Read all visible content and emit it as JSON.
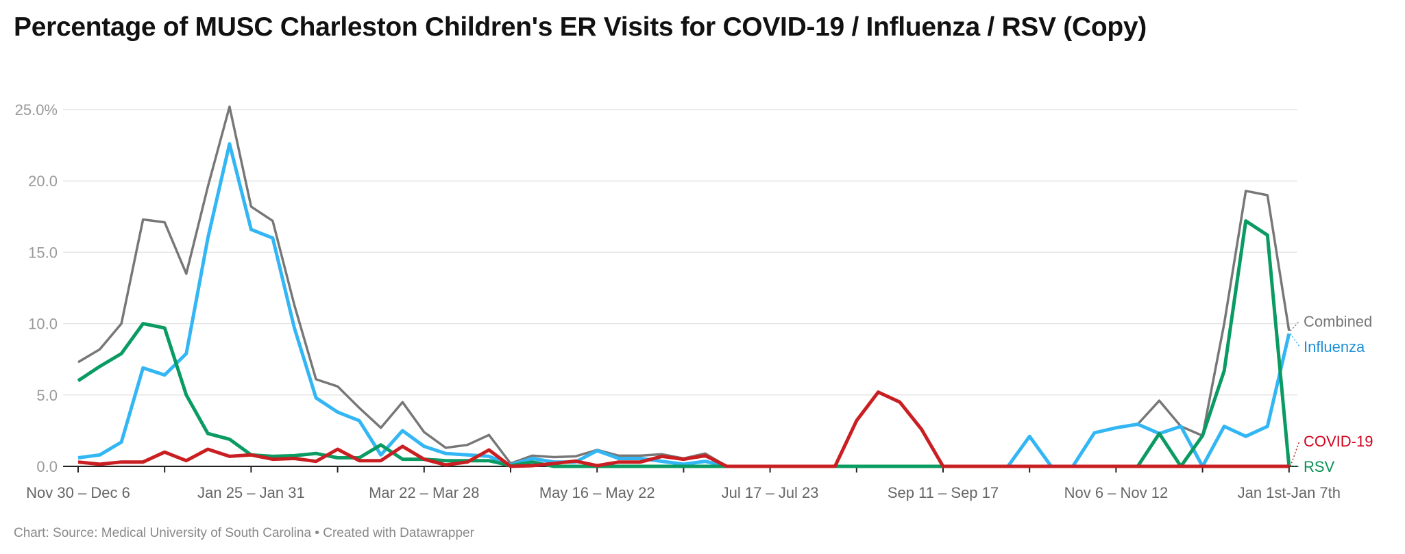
{
  "title": "Percentage of MUSC Charleston Children's ER Visits for COVID-19 / Influenza / RSV (Copy)",
  "footer": "Chart: Source: Medical University of South Carolina • Created with Datawrapper",
  "chart_data": {
    "type": "line",
    "title": "Percentage of MUSC Charleston Children's ER Visits for COVID-19 / Influenza / RSV (Copy)",
    "xlabel": "",
    "ylabel": "",
    "ylim": [
      0,
      25
    ],
    "y_ticks": [
      "0.0",
      "5.0",
      "10.0",
      "15.0",
      "20.0",
      "25.0%"
    ],
    "x_tick_labels": [
      "Nov 30 – Dec 6",
      "Jan 25 – Jan 31",
      "Mar 22 – Mar 28",
      "May 16 – May 22",
      "Jul 17 – Jul 23",
      "Sep 11 – Sep 17",
      "Nov 6 – Nov 12",
      "Jan 1st-Jan 7th"
    ],
    "x_interval": "weekly",
    "grid": true,
    "legend": "direct labels at right end",
    "series": [
      {
        "name": "Combined",
        "color": "#777777",
        "label_color": "#777777",
        "values": [
          7.3,
          8.2,
          10.0,
          17.3,
          17.1,
          13.5,
          19.6,
          25.2,
          18.2,
          17.2,
          11.3,
          6.1,
          5.6,
          4.1,
          2.7,
          4.5,
          2.4,
          1.3,
          1.5,
          2.2,
          0.2,
          0.75,
          0.65,
          0.7,
          1.15,
          0.75,
          0.75,
          0.85,
          0.55,
          0.9,
          0,
          0,
          0,
          0,
          0,
          0,
          0,
          0,
          0,
          0,
          0,
          0,
          0,
          0,
          2.1,
          0,
          0,
          2.35,
          2.7,
          2.95,
          4.6,
          2.8,
          2.15,
          10.0,
          19.3,
          19.0,
          9.5
        ]
      },
      {
        "name": "Influenza",
        "color": "#33b6f4",
        "label_color": "#1e90d8",
        "values": [
          0.6,
          0.8,
          1.7,
          6.9,
          6.4,
          7.9,
          16.0,
          22.6,
          16.6,
          16.0,
          9.7,
          4.8,
          3.8,
          3.2,
          0.8,
          2.5,
          1.4,
          0.9,
          0.8,
          0.7,
          0.1,
          0.55,
          0.3,
          0.3,
          1.1,
          0.55,
          0.55,
          0.35,
          0.15,
          0.35,
          0,
          0,
          0,
          0,
          0,
          0,
          0,
          0,
          0,
          0,
          0,
          0,
          0,
          0,
          2.1,
          0,
          0,
          2.35,
          2.7,
          2.95,
          2.3,
          2.8,
          0,
          2.8,
          2.1,
          2.8,
          9.3
        ]
      },
      {
        "name": "RSV",
        "color": "#0a9b62",
        "label_color": "#0a8f55",
        "values": [
          6.0,
          7.0,
          7.9,
          10.0,
          9.7,
          5.0,
          2.3,
          1.9,
          0.8,
          0.7,
          0.75,
          0.9,
          0.6,
          0.6,
          1.5,
          0.5,
          0.5,
          0.4,
          0.4,
          0.4,
          0.05,
          0.3,
          0,
          0,
          0,
          0,
          0,
          0,
          0,
          0,
          0,
          0,
          0,
          0,
          0,
          0,
          0,
          0,
          0,
          0,
          0,
          0,
          0,
          0,
          0,
          0,
          0,
          0,
          0,
          0,
          2.3,
          0,
          2.15,
          6.7,
          17.2,
          16.2,
          0
        ]
      },
      {
        "name": "COVID-19",
        "color": "#c91e22",
        "label_color": "#d0021b",
        "values": [
          0.3,
          0.15,
          0.3,
          0.3,
          1.0,
          0.4,
          1.2,
          0.7,
          0.8,
          0.5,
          0.55,
          0.35,
          1.2,
          0.4,
          0.4,
          1.4,
          0.5,
          0.1,
          0.3,
          1.15,
          0,
          0.05,
          0.2,
          0.37,
          0.05,
          0.3,
          0.3,
          0.7,
          0.5,
          0.75,
          0,
          0,
          0,
          0,
          0,
          0,
          3.2,
          5.2,
          4.5,
          2.6,
          0,
          0,
          0,
          0,
          0,
          0,
          0,
          0,
          0,
          0,
          0,
          0,
          0,
          0,
          0,
          0,
          0
        ]
      }
    ]
  }
}
